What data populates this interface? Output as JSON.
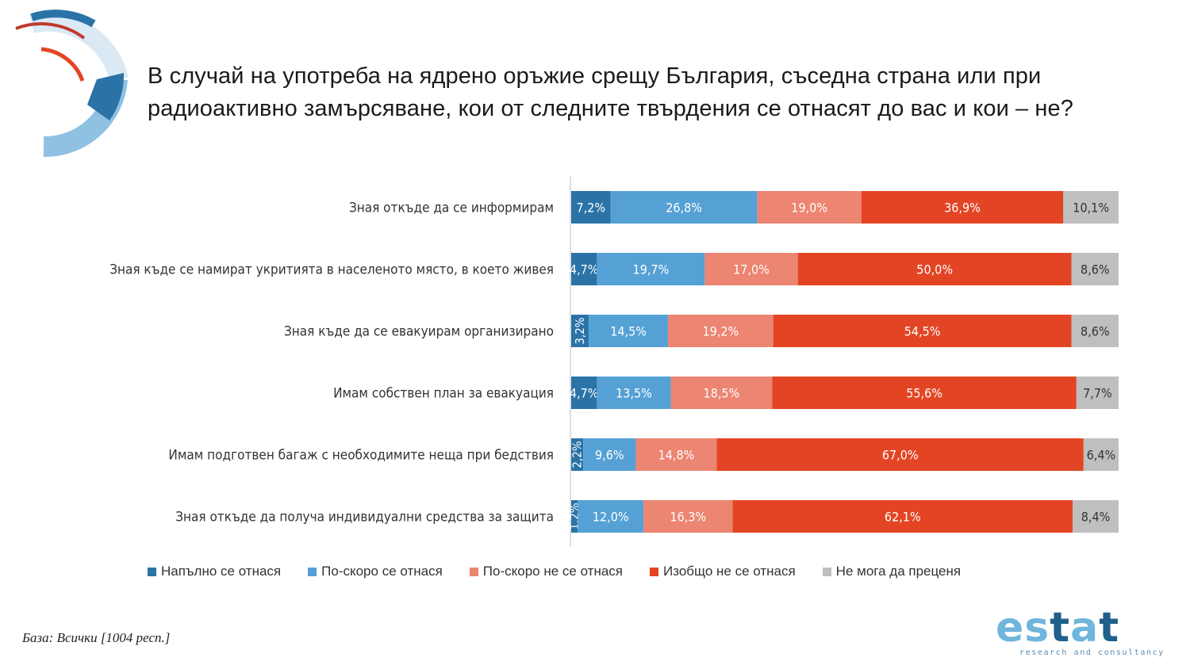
{
  "title": {
    "line1": "В случай на употреба на ядрено оръжие срещу България, съседна страна или при",
    "line2": "радиоактивно замърсяване, кои от следните твърдения се отнасят до вас и кои – не?"
  },
  "colors": {
    "fully": "#2b73a7",
    "rather_yes": "#55a1d5",
    "rather_no": "#ec8571",
    "not_at_all": "#e34524",
    "cant_say": "#bfbfbf",
    "logo_dark": "#1f5f8b",
    "logo_light": "#6fb5dc"
  },
  "chart_data": {
    "type": "bar",
    "orientation": "horizontal",
    "stacked": "100%",
    "categories": [
      "Зная откъде да се информирам",
      "Зная къде се намират укритията в населеното място, в което живея",
      "Зная къде да се евакуирам организирано",
      "Имам собствен план за евакуация",
      "Имам подготвен багаж с необходимите неща при бедствия",
      "Зная откъде да получа индивидуални средства за защита"
    ],
    "series": [
      {
        "name": "Напълно се отнася",
        "values": [
          7.2,
          4.7,
          3.2,
          4.7,
          2.2,
          1.2
        ],
        "labels": [
          "7,2%",
          "4,7%",
          "3,2%",
          "4,7%",
          "2,2%",
          "1,2%"
        ]
      },
      {
        "name": "По-скоро се отнася",
        "values": [
          26.8,
          19.7,
          14.5,
          13.5,
          9.6,
          12.0
        ],
        "labels": [
          "26,8%",
          "19,7%",
          "14,5%",
          "13,5%",
          "9,6%",
          "12,0%"
        ]
      },
      {
        "name": "По-скоро не се отнася",
        "values": [
          19.0,
          17.0,
          19.2,
          18.5,
          14.8,
          16.3
        ],
        "labels": [
          "19,0%",
          "17,0%",
          "19,2%",
          "18,5%",
          "14,8%",
          "16,3%"
        ]
      },
      {
        "name": "Изобщо не се отнася",
        "values": [
          36.9,
          50.0,
          54.5,
          55.6,
          67.0,
          62.1
        ],
        "labels": [
          "36,9%",
          "50,0%",
          "54,5%",
          "55,6%",
          "67,0%",
          "62,1%"
        ]
      },
      {
        "name": "Не мога да преценя",
        "values": [
          10.1,
          8.6,
          8.6,
          7.7,
          6.4,
          8.4
        ],
        "labels": [
          "10,1%",
          "8,6%",
          "8,6%",
          "7,7%",
          "6,4%",
          "8,4%"
        ]
      }
    ],
    "xlim": [
      0,
      100
    ],
    "legend": "bottom",
    "grid": false
  },
  "footer": {
    "base_note": "База: Всички [1004 респ.]",
    "logo_text": "estat",
    "logo_tagline": "research and consultancy"
  }
}
